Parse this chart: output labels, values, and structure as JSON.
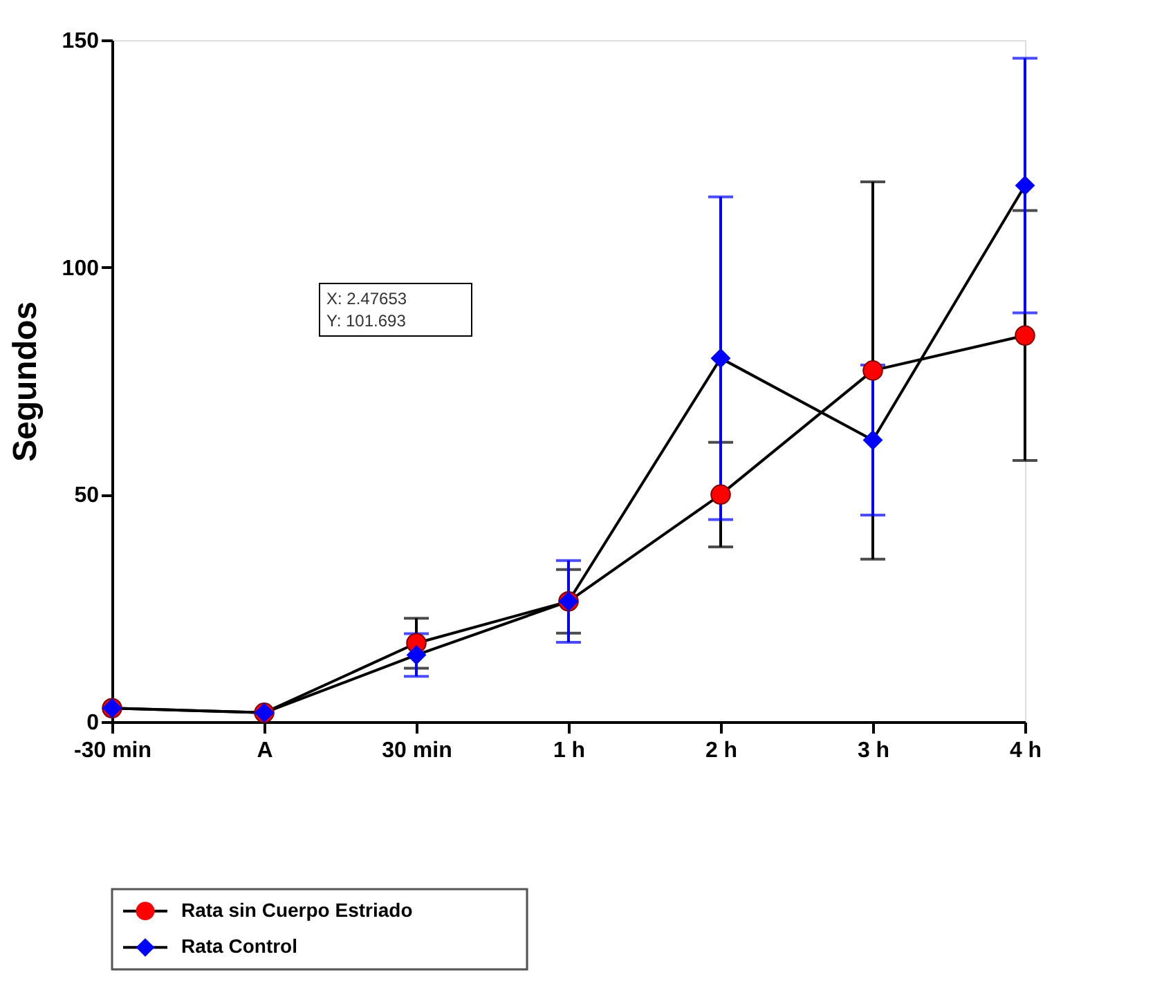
{
  "chart_data": {
    "type": "line",
    "ylabel": "Segundos",
    "categories": [
      "-30 min",
      "A",
      "30 min",
      "1 h",
      "2 h",
      "3 h",
      "4 h"
    ],
    "series": [
      {
        "name": "Rata sin Cuerpo Estriado",
        "color": "#ff0000",
        "marker": "circle",
        "values": [
          3,
          2,
          17.3,
          26.5,
          50,
          77.3,
          85
        ],
        "errors": [
          null,
          null,
          5.5,
          7,
          11.5,
          41.5,
          27.5
        ]
      },
      {
        "name": "Rata Control",
        "color": "#0000ff",
        "marker": "diamond",
        "values": [
          3,
          2,
          14.7,
          26.5,
          80,
          62,
          118
        ],
        "errors": [
          null,
          null,
          4.7,
          9,
          35.5,
          16.5,
          28
        ]
      }
    ],
    "ylim": [
      0,
      150
    ],
    "yticks": [
      0,
      50,
      100,
      150
    ],
    "grid": false,
    "legend": "bottom left",
    "line_style": "solid",
    "annotations": [
      "X:   2.47653",
      "Y:   101.693"
    ]
  }
}
